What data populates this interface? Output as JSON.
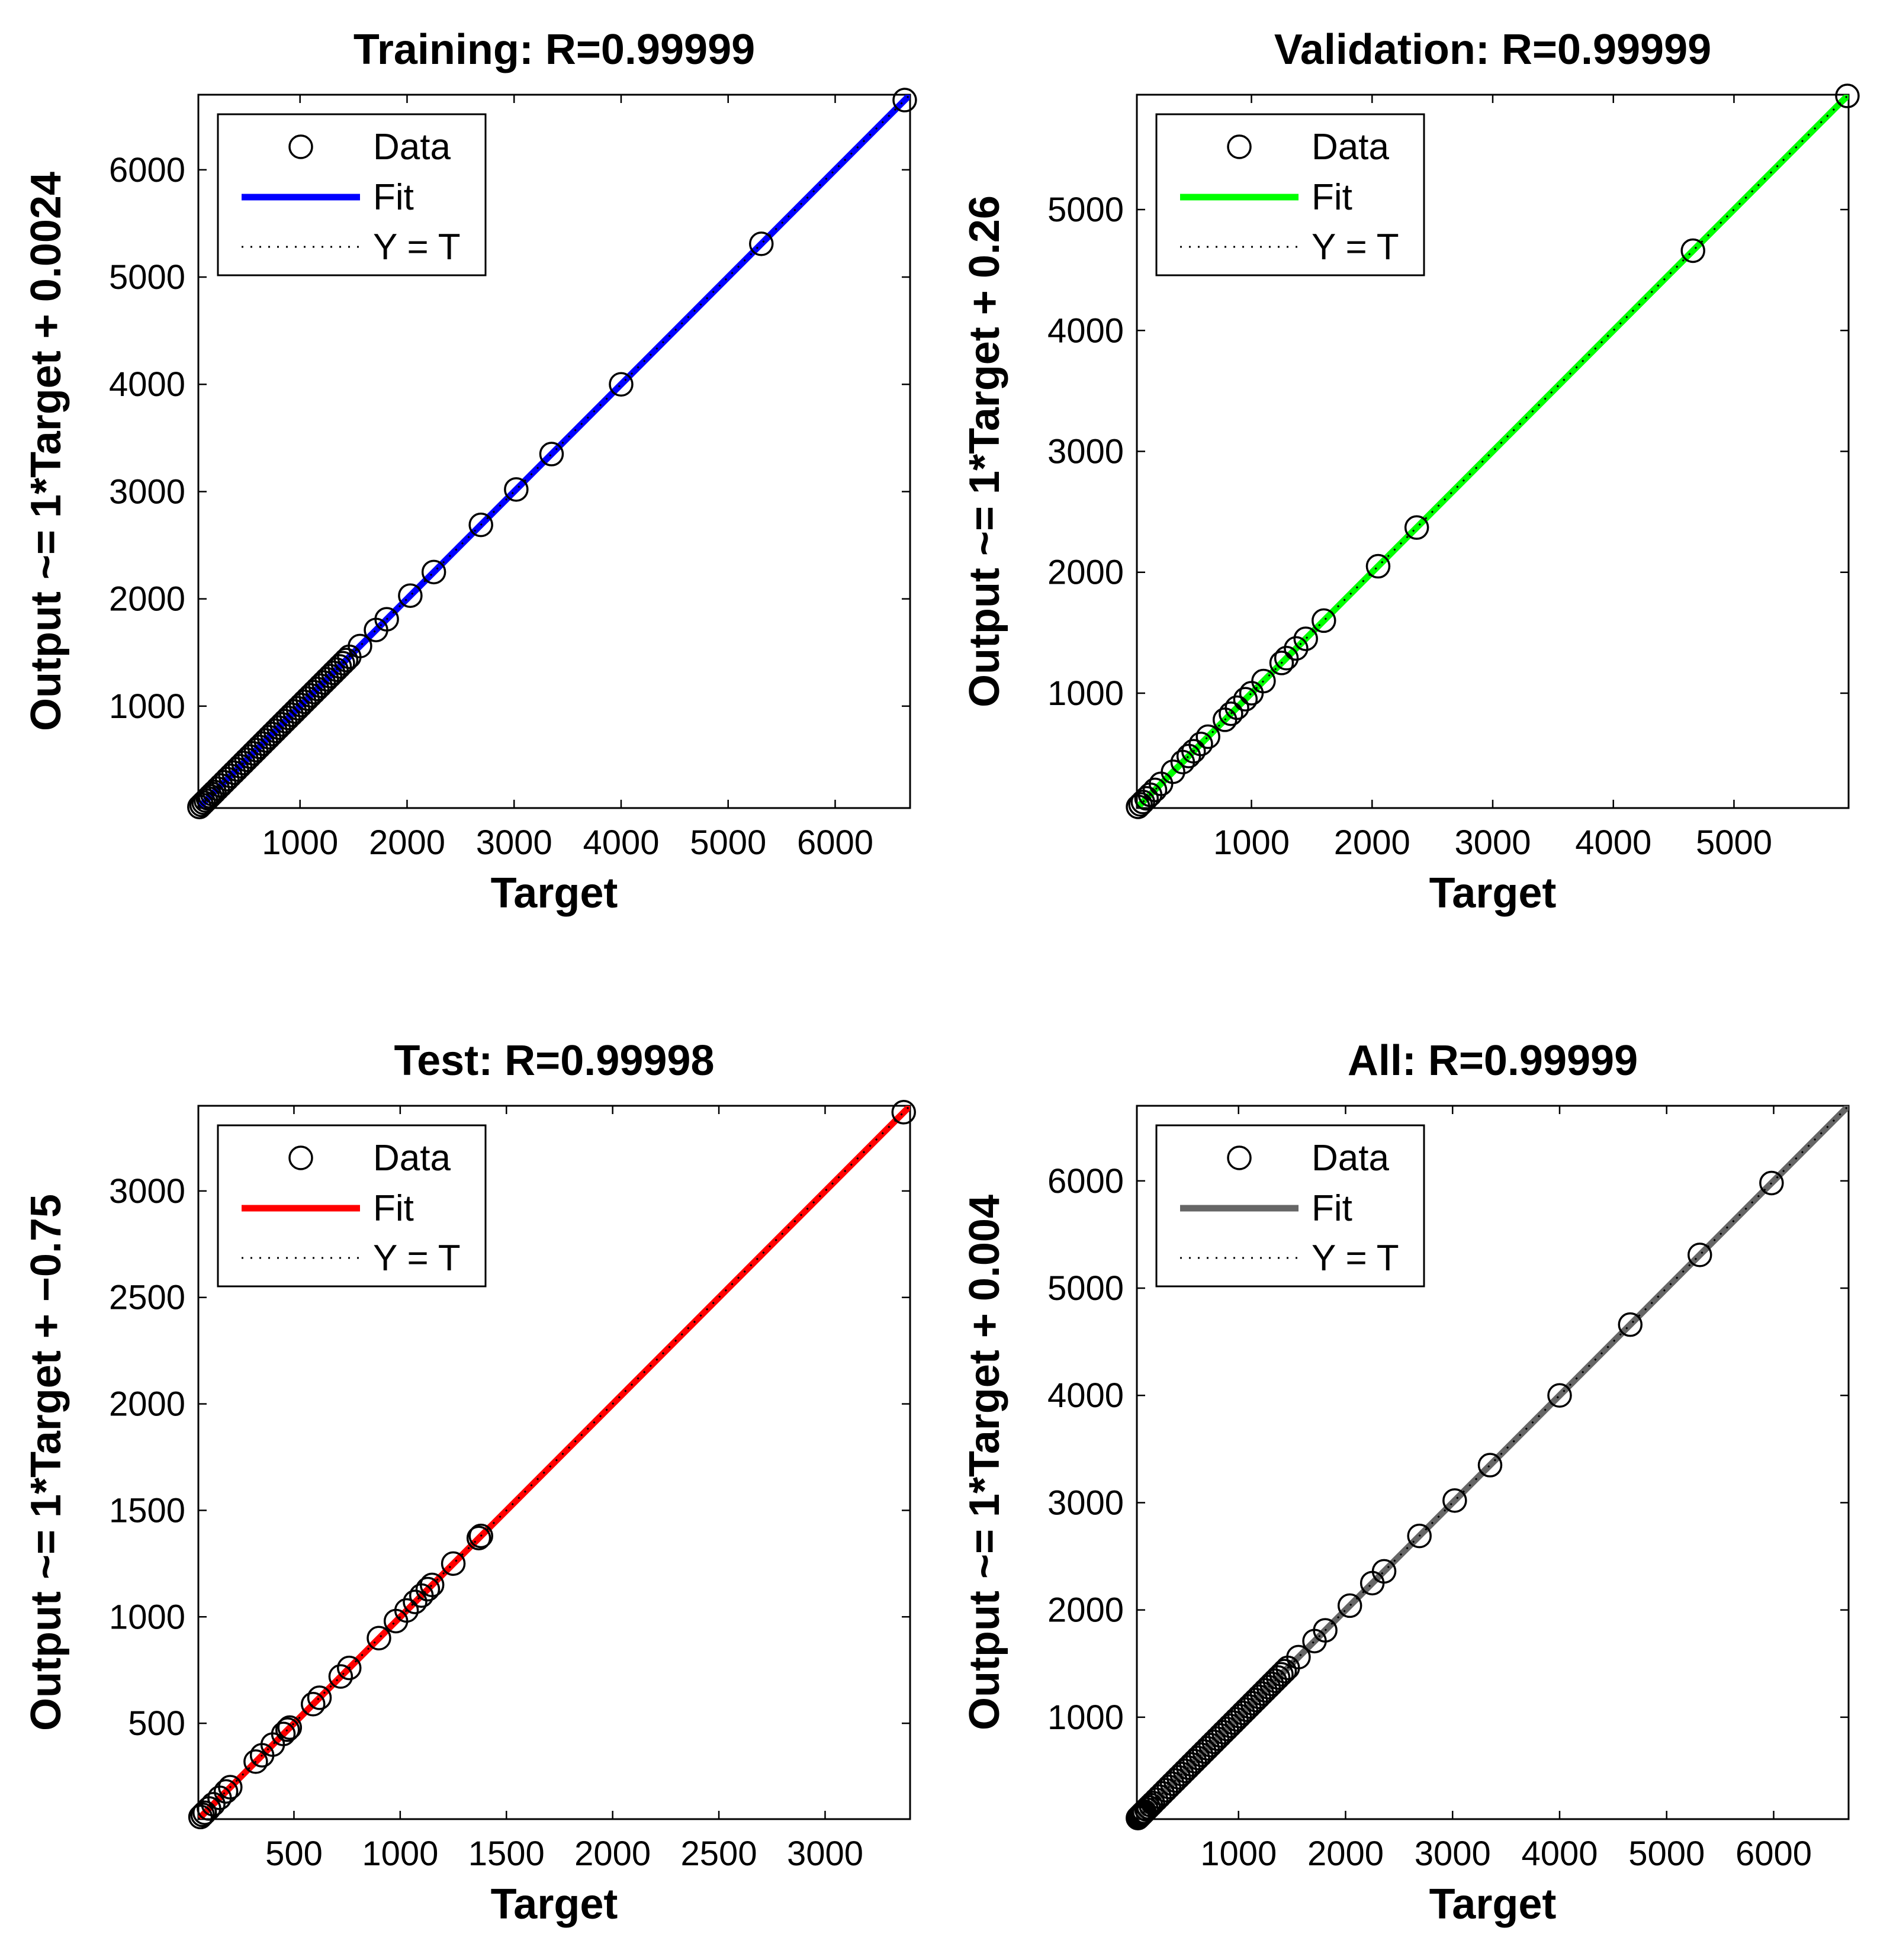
{
  "chart_data": [
    {
      "type": "scatter",
      "title": "Training: R=0.99999",
      "xlabel": "Target",
      "ylabel": "Output ~= 1*Target + 0.0024",
      "xlim": [
        50,
        6700
      ],
      "ylim": [
        50,
        6700
      ],
      "xticks": [
        1000,
        2000,
        3000,
        4000,
        5000,
        6000
      ],
      "yticks": [
        1000,
        2000,
        3000,
        4000,
        5000,
        6000
      ],
      "grid": false,
      "legend_position": "top-left",
      "legend": [
        "Data",
        "Fit",
        "Y = T"
      ],
      "fit_color": "#0000ff",
      "fit": {
        "slope": 1,
        "intercept": 0.0024
      },
      "points": [
        [
          60,
          60
        ],
        [
          80,
          80
        ],
        [
          100,
          100
        ],
        [
          120,
          120
        ],
        [
          140,
          140
        ],
        [
          160,
          160
        ],
        [
          180,
          180
        ],
        [
          200,
          200
        ],
        [
          230,
          230
        ],
        [
          260,
          260
        ],
        [
          290,
          290
        ],
        [
          320,
          320
        ],
        [
          350,
          350
        ],
        [
          380,
          380
        ],
        [
          410,
          410
        ],
        [
          440,
          440
        ],
        [
          470,
          470
        ],
        [
          500,
          500
        ],
        [
          530,
          530
        ],
        [
          560,
          560
        ],
        [
          590,
          590
        ],
        [
          620,
          620
        ],
        [
          650,
          650
        ],
        [
          680,
          680
        ],
        [
          710,
          710
        ],
        [
          740,
          740
        ],
        [
          770,
          770
        ],
        [
          800,
          800
        ],
        [
          830,
          830
        ],
        [
          860,
          860
        ],
        [
          890,
          890
        ],
        [
          920,
          920
        ],
        [
          950,
          950
        ],
        [
          980,
          980
        ],
        [
          1010,
          1010
        ],
        [
          1040,
          1040
        ],
        [
          1070,
          1070
        ],
        [
          1100,
          1100
        ],
        [
          1130,
          1130
        ],
        [
          1160,
          1160
        ],
        [
          1190,
          1190
        ],
        [
          1220,
          1220
        ],
        [
          1250,
          1250
        ],
        [
          1280,
          1280
        ],
        [
          1310,
          1310
        ],
        [
          1340,
          1340
        ],
        [
          1370,
          1370
        ],
        [
          1400,
          1400
        ],
        [
          1430,
          1430
        ],
        [
          1460,
          1460
        ],
        [
          1560,
          1560
        ],
        [
          1710,
          1710
        ],
        [
          1810,
          1810
        ],
        [
          2030,
          2030
        ],
        [
          2250,
          2250
        ],
        [
          2690,
          2690
        ],
        [
          3020,
          3020
        ],
        [
          3350,
          3350
        ],
        [
          4000,
          4000
        ],
        [
          5310,
          5310
        ],
        [
          6650,
          6650
        ]
      ]
    },
    {
      "type": "scatter",
      "title": "Validation: R=0.99999",
      "xlabel": "Target",
      "ylabel": "Output ~= 1*Target + 0.26",
      "xlim": [
        50,
        5950
      ],
      "ylim": [
        50,
        5950
      ],
      "xticks": [
        1000,
        2000,
        3000,
        4000,
        5000
      ],
      "yticks": [
        1000,
        2000,
        3000,
        4000,
        5000
      ],
      "grid": false,
      "legend_position": "top-left",
      "legend": [
        "Data",
        "Fit",
        "Y = T"
      ],
      "fit_color": "#00ff00",
      "fit": {
        "slope": 1,
        "intercept": 0.26
      },
      "points": [
        [
          60,
          60
        ],
        [
          80,
          80
        ],
        [
          100,
          100
        ],
        [
          130,
          130
        ],
        [
          160,
          160
        ],
        [
          200,
          200
        ],
        [
          250,
          250
        ],
        [
          350,
          350
        ],
        [
          430,
          430
        ],
        [
          480,
          480
        ],
        [
          520,
          520
        ],
        [
          580,
          580
        ],
        [
          640,
          640
        ],
        [
          780,
          780
        ],
        [
          830,
          830
        ],
        [
          880,
          880
        ],
        [
          950,
          950
        ],
        [
          1000,
          1000
        ],
        [
          1100,
          1100
        ],
        [
          1250,
          1250
        ],
        [
          1290,
          1290
        ],
        [
          1370,
          1370
        ],
        [
          1450,
          1450
        ],
        [
          1600,
          1600
        ],
        [
          2050,
          2050
        ],
        [
          2370,
          2370
        ],
        [
          4660,
          4660
        ],
        [
          5940,
          5940
        ]
      ]
    },
    {
      "type": "scatter",
      "title": "Test: R=0.99998",
      "xlabel": "Target",
      "ylabel": "Output ~= 1*Target + −0.75",
      "xlim": [
        50,
        3400
      ],
      "ylim": [
        50,
        3400
      ],
      "xticks": [
        500,
        1000,
        1500,
        2000,
        2500,
        3000
      ],
      "yticks": [
        500,
        1000,
        1500,
        2000,
        2500,
        3000
      ],
      "grid": false,
      "legend_position": "top-left",
      "legend": [
        "Data",
        "Fit",
        "Y = T"
      ],
      "fit_color": "#ff0000",
      "fit": {
        "slope": 1,
        "intercept": -0.75
      },
      "points": [
        [
          60,
          60
        ],
        [
          70,
          70
        ],
        [
          80,
          80
        ],
        [
          100,
          100
        ],
        [
          120,
          120
        ],
        [
          150,
          150
        ],
        [
          180,
          180
        ],
        [
          200,
          200
        ],
        [
          320,
          320
        ],
        [
          350,
          350
        ],
        [
          400,
          400
        ],
        [
          450,
          450
        ],
        [
          470,
          470
        ],
        [
          480,
          480
        ],
        [
          590,
          590
        ],
        [
          620,
          620
        ],
        [
          720,
          720
        ],
        [
          760,
          760
        ],
        [
          900,
          900
        ],
        [
          980,
          980
        ],
        [
          1030,
          1030
        ],
        [
          1070,
          1070
        ],
        [
          1100,
          1100
        ],
        [
          1130,
          1130
        ],
        [
          1150,
          1150
        ],
        [
          1250,
          1250
        ],
        [
          1370,
          1370
        ],
        [
          1380,
          1380
        ],
        [
          3370,
          3370
        ]
      ]
    },
    {
      "type": "scatter",
      "title": "All: R=0.99999",
      "xlabel": "Target",
      "ylabel": "Output ~= 1*Target + 0.004",
      "xlim": [
        50,
        6700
      ],
      "ylim": [
        50,
        6700
      ],
      "xticks": [
        1000,
        2000,
        3000,
        4000,
        5000,
        6000
      ],
      "yticks": [
        1000,
        2000,
        3000,
        4000,
        5000,
        6000
      ],
      "grid": false,
      "legend_position": "top-left",
      "legend": [
        "Data",
        "Fit",
        "Y = T"
      ],
      "fit_color": "#666666",
      "fit": {
        "slope": 1,
        "intercept": 0.004
      },
      "points": [
        [
          60,
          60
        ],
        [
          70,
          70
        ],
        [
          80,
          80
        ],
        [
          90,
          90
        ],
        [
          100,
          100
        ],
        [
          110,
          110
        ],
        [
          120,
          120
        ],
        [
          140,
          140
        ],
        [
          160,
          160
        ],
        [
          180,
          180
        ],
        [
          200,
          200
        ],
        [
          230,
          230
        ],
        [
          260,
          260
        ],
        [
          290,
          290
        ],
        [
          320,
          320
        ],
        [
          350,
          350
        ],
        [
          380,
          380
        ],
        [
          410,
          410
        ],
        [
          440,
          440
        ],
        [
          470,
          470
        ],
        [
          500,
          500
        ],
        [
          530,
          530
        ],
        [
          560,
          560
        ],
        [
          590,
          590
        ],
        [
          620,
          620
        ],
        [
          650,
          650
        ],
        [
          680,
          680
        ],
        [
          710,
          710
        ],
        [
          740,
          740
        ],
        [
          770,
          770
        ],
        [
          800,
          800
        ],
        [
          830,
          830
        ],
        [
          860,
          860
        ],
        [
          890,
          890
        ],
        [
          920,
          920
        ],
        [
          950,
          950
        ],
        [
          980,
          980
        ],
        [
          1010,
          1010
        ],
        [
          1040,
          1040
        ],
        [
          1070,
          1070
        ],
        [
          1100,
          1100
        ],
        [
          1130,
          1130
        ],
        [
          1160,
          1160
        ],
        [
          1190,
          1190
        ],
        [
          1220,
          1220
        ],
        [
          1250,
          1250
        ],
        [
          1280,
          1280
        ],
        [
          1310,
          1310
        ],
        [
          1340,
          1340
        ],
        [
          1370,
          1370
        ],
        [
          1400,
          1400
        ],
        [
          1430,
          1430
        ],
        [
          1460,
          1460
        ],
        [
          1560,
          1560
        ],
        [
          1710,
          1710
        ],
        [
          1810,
          1810
        ],
        [
          2040,
          2040
        ],
        [
          2250,
          2250
        ],
        [
          2360,
          2360
        ],
        [
          2690,
          2690
        ],
        [
          3020,
          3020
        ],
        [
          3350,
          3350
        ],
        [
          4000,
          4000
        ],
        [
          4660,
          4660
        ],
        [
          5310,
          5310
        ],
        [
          5980,
          5980
        ]
      ]
    }
  ]
}
